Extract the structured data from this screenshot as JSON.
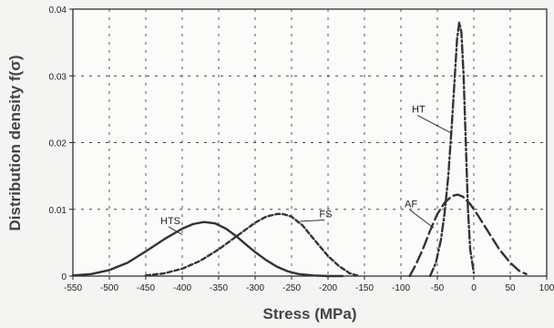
{
  "chart_data": {
    "type": "line",
    "xlabel": "Stress  (MPa)",
    "ylabel": "Distribution density f(σ)",
    "xlim": [
      -550,
      100
    ],
    "ylim": [
      0,
      0.04
    ],
    "x_ticks": [
      -550,
      -500,
      -450,
      -400,
      -350,
      -300,
      -250,
      -200,
      -150,
      -100,
      -50,
      0,
      50,
      100
    ],
    "y_ticks": [
      0,
      0.01,
      0.02,
      0.03,
      0.04
    ],
    "x_tick_labels": [
      "-550",
      "-500",
      "-450",
      "-400",
      "-350",
      "-300",
      "-250",
      "-200",
      "-150",
      "-100",
      "-50",
      "0",
      "50",
      "100"
    ],
    "y_tick_labels": [
      "0",
      "0.01",
      "0.02",
      "0.03",
      "0.04"
    ],
    "grid": true,
    "series": [
      {
        "name": "HTS",
        "style": "solid",
        "color": "#333333",
        "x": [
          -550,
          -525,
          -500,
          -475,
          -450,
          -425,
          -400,
          -385,
          -370,
          -355,
          -340,
          -325,
          -310,
          -300,
          -285,
          -270,
          -255,
          -240,
          -220,
          -200,
          -180
        ],
        "y": [
          0.0001,
          0.0003,
          0.0009,
          0.002,
          0.0037,
          0.0055,
          0.0071,
          0.0078,
          0.0081,
          0.0079,
          0.0071,
          0.0059,
          0.0045,
          0.0036,
          0.0024,
          0.0014,
          0.0007,
          0.0003,
          0.0001,
          0.0,
          0.0
        ]
      },
      {
        "name": "FS",
        "style": "dash",
        "color": "#333333",
        "x": [
          -450,
          -425,
          -400,
          -375,
          -350,
          -325,
          -300,
          -285,
          -270,
          -262,
          -250,
          -235,
          -220,
          -200,
          -185,
          -170,
          -160
        ],
        "y": [
          0.0001,
          0.0004,
          0.0011,
          0.0023,
          0.004,
          0.006,
          0.008,
          0.0089,
          0.0093,
          0.0093,
          0.0089,
          0.0076,
          0.0056,
          0.003,
          0.0015,
          0.0004,
          0.0001
        ]
      },
      {
        "name": "AF",
        "style": "longdash",
        "color": "#333333",
        "x": [
          -88,
          -80,
          -70,
          -60,
          -50,
          -40,
          -30,
          -22,
          -15,
          -5,
          5,
          20,
          35,
          50,
          62,
          72
        ],
        "y": [
          0.0,
          0.0016,
          0.004,
          0.0068,
          0.0093,
          0.011,
          0.012,
          0.0122,
          0.0119,
          0.0108,
          0.0092,
          0.0066,
          0.004,
          0.002,
          0.0008,
          0.0003
        ]
      },
      {
        "name": "HT",
        "style": "dashdot",
        "color": "#333333",
        "x": [
          -60,
          -52,
          -45,
          -40,
          -35,
          -30,
          -26,
          -23,
          -20,
          -17,
          -14,
          -11,
          -8,
          -5,
          0
        ],
        "y": [
          0.0,
          0.002,
          0.0055,
          0.0095,
          0.015,
          0.023,
          0.03,
          0.0355,
          0.038,
          0.0365,
          0.03,
          0.02,
          0.01,
          0.004,
          0.0005
        ]
      }
    ],
    "annotations": [
      {
        "text": "HTS",
        "x": -430,
        "y": 0.0078,
        "to_x": -400,
        "to_y": 0.0062
      },
      {
        "text": "FS",
        "x": -212,
        "y": 0.0088,
        "to_x": -238,
        "to_y": 0.0082
      },
      {
        "text": "AF",
        "x": -95,
        "y": 0.0103,
        "to_x": -55,
        "to_y": 0.0072
      },
      {
        "text": "HT",
        "x": -85,
        "y": 0.0245,
        "to_x": -32,
        "to_y": 0.0215
      }
    ]
  }
}
